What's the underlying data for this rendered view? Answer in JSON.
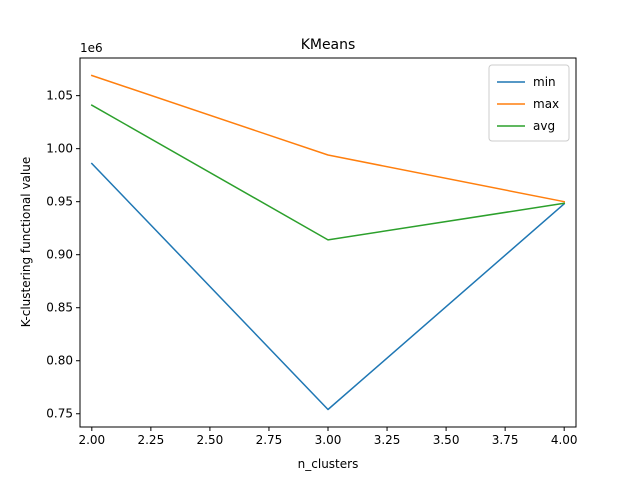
{
  "chart_data": {
    "type": "line",
    "title": "KMeans",
    "xlabel": "n_clusters",
    "ylabel": "K-clustering functional value",
    "y_offset_label": "1e6",
    "xlim": [
      1.95,
      4.05
    ],
    "ylim": [
      737500,
      1085500
    ],
    "x_ticks": [
      2.0,
      2.25,
      2.5,
      2.75,
      3.0,
      3.25,
      3.5,
      3.75,
      4.0
    ],
    "x_tick_labels": [
      "2.00",
      "2.25",
      "2.50",
      "2.75",
      "3.00",
      "3.25",
      "3.50",
      "3.75",
      "4.00"
    ],
    "y_ticks": [
      750000,
      800000,
      850000,
      900000,
      950000,
      1000000,
      1050000
    ],
    "y_tick_labels": [
      "0.75",
      "0.80",
      "0.85",
      "0.90",
      "0.95",
      "1.00",
      "1.05"
    ],
    "x": [
      2,
      3,
      4
    ],
    "series": [
      {
        "name": "min",
        "color": "#1f77b4",
        "values": [
          986000,
          754000,
          948000
        ]
      },
      {
        "name": "max",
        "color": "#ff7f0e",
        "values": [
          1069000,
          994000,
          950000
        ]
      },
      {
        "name": "avg",
        "color": "#2ca02c",
        "values": [
          1041000,
          914000,
          948500
        ]
      }
    ],
    "legend_position": "top-right",
    "grid": false
  }
}
